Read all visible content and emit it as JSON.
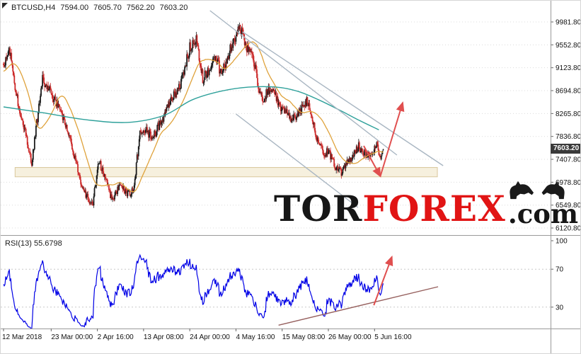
{
  "header": {
    "symbol_timeframe": "BTCUSD,H4",
    "open": "7594.00",
    "high": "7605.70",
    "low": "7562.20",
    "close": "7603.20"
  },
  "watermark": {
    "part_black_1": "TOR",
    "part_red": "FOREX",
    "part_black_2": ".com",
    "logo": "bull-and-bear"
  },
  "price_axis": {
    "current_price": "7603.20"
  },
  "rsi": {
    "label": "RSI(13) 55.6798",
    "period": 13,
    "value": 55.6798,
    "levels": [
      {
        "label": "100",
        "value": 100
      },
      {
        "label": "70",
        "value": 70
      },
      {
        "label": "30",
        "value": 30
      }
    ]
  },
  "colors": {
    "candle_up": "#1c1c1c",
    "candle_down": "#cc2b2b",
    "ma_fast": "#dfa23b",
    "ma_slow": "#2fa19b",
    "trendline": "#a9b6c2",
    "arrow": "#e04f4f",
    "rsi_line": "#0000e6",
    "rsi_trend": "#96605e",
    "zone_fill": "#efe3c2",
    "zone_border": "#d8c79c",
    "watermark_red": "#e11414",
    "watermark_black": "#161616",
    "price_tag_bg": "#3a3a3a",
    "price_tag_text": "#ffffff",
    "grid": "#dcdcdc",
    "frame": "#9a9a9a",
    "axis_text": "#111111"
  },
  "chart_data": {
    "type": "candlestick",
    "symbol": "BTCUSD",
    "timeframe": "H4",
    "title": "BTCUSD,H4",
    "candles_total": 527,
    "ohlc_last": {
      "open": 7594.0,
      "high": 7605.7,
      "low": 7562.2,
      "close": 7603.2
    },
    "y_ticks": [
      9981.8,
      9552.8,
      9123.8,
      8694.8,
      8265.8,
      7836.8,
      7407.8,
      6978.8,
      6549.8,
      6120.8
    ],
    "x_ticks": [
      {
        "label": "12 Mar 2018",
        "index": 0
      },
      {
        "label": "23 Mar 00:00",
        "index": 66
      },
      {
        "label": "2 Apr 16:00",
        "index": 130
      },
      {
        "label": "13 Apr 08:00",
        "index": 194
      },
      {
        "label": "24 Apr 00:00",
        "index": 258
      },
      {
        "label": "4 May 16:00",
        "index": 322
      },
      {
        "label": "15 May 08:00",
        "index": 386
      },
      {
        "label": "26 May 00:00",
        "index": 450
      },
      {
        "label": "5 Jun 16:00",
        "index": 514
      }
    ],
    "price_anchors": [
      [
        -144,
        8350
      ],
      [
        -100,
        8380
      ],
      [
        -60,
        8500
      ],
      [
        -24,
        8950
      ],
      [
        -6,
        9250
      ],
      [
        0,
        9150
      ],
      [
        9,
        9420
      ],
      [
        18,
        8600
      ],
      [
        30,
        7900
      ],
      [
        39,
        7350
      ],
      [
        54,
        8900
      ],
      [
        66,
        8650
      ],
      [
        72,
        8500
      ],
      [
        84,
        8150
      ],
      [
        96,
        7600
      ],
      [
        108,
        6900
      ],
      [
        123,
        6520
      ],
      [
        132,
        7380
      ],
      [
        141,
        7050
      ],
      [
        150,
        6650
      ],
      [
        162,
        6950
      ],
      [
        171,
        6750
      ],
      [
        180,
        6830
      ],
      [
        189,
        7900
      ],
      [
        198,
        7950
      ],
      [
        207,
        7800
      ],
      [
        216,
        8070
      ],
      [
        234,
        8550
      ],
      [
        246,
        8850
      ],
      [
        258,
        9500
      ],
      [
        267,
        9650
      ],
      [
        276,
        8920
      ],
      [
        285,
        9100
      ],
      [
        294,
        9350
      ],
      [
        300,
        9070
      ],
      [
        306,
        9150
      ],
      [
        315,
        9500
      ],
      [
        324,
        9800
      ],
      [
        328,
        9850
      ],
      [
        336,
        9550
      ],
      [
        348,
        9200
      ],
      [
        354,
        8700
      ],
      [
        360,
        8500
      ],
      [
        366,
        8700
      ],
      [
        372,
        8750
      ],
      [
        381,
        8450
      ],
      [
        390,
        8300
      ],
      [
        399,
        8150
      ],
      [
        408,
        8250
      ],
      [
        420,
        8480
      ],
      [
        426,
        8300
      ],
      [
        432,
        7900
      ],
      [
        438,
        7700
      ],
      [
        444,
        7500
      ],
      [
        450,
        7600
      ],
      [
        456,
        7350
      ],
      [
        462,
        7250
      ],
      [
        468,
        7130
      ],
      [
        474,
        7280
      ],
      [
        480,
        7400
      ],
      [
        486,
        7550
      ],
      [
        492,
        7650
      ],
      [
        498,
        7550
      ],
      [
        504,
        7480
      ],
      [
        510,
        7520
      ],
      [
        513,
        7570
      ],
      [
        516,
        7680
      ],
      [
        520,
        7560
      ],
      [
        523,
        7480
      ],
      [
        526,
        7603.2
      ]
    ],
    "indicators": {
      "ma_fast": {
        "type": "SMA",
        "period": 34
      },
      "ma_slow": {
        "type": "MA",
        "period": 144
      }
    },
    "ma_slow_anchors": [
      [
        0,
        8390
      ],
      [
        55,
        8280
      ],
      [
        114,
        8150
      ],
      [
        172,
        8100
      ],
      [
        222,
        8230
      ],
      [
        261,
        8520
      ],
      [
        300,
        8680
      ],
      [
        339,
        8760
      ],
      [
        378,
        8760
      ],
      [
        408,
        8680
      ],
      [
        437,
        8520
      ],
      [
        467,
        8320
      ],
      [
        491,
        8150
      ],
      [
        520,
        7960
      ]
    ],
    "support_zone": {
      "i_from": 16,
      "i_to": 601,
      "price_from": 7080,
      "price_to": 7255
    },
    "trendlines": [
      {
        "i1": 286,
        "p1": 10194,
        "i2": 545,
        "p2": 7488
      },
      {
        "i1": 331,
        "p1": 9796,
        "i2": 609,
        "p2": 7289
      },
      {
        "i1": 322,
        "p1": 8257,
        "i2": 491,
        "p2": 6506
      }
    ],
    "arrows_main": [
      {
        "i1": 499,
        "p1": 7660,
        "i2": 522,
        "p2": 7090
      },
      {
        "i1": 522,
        "p1": 7090,
        "i2": 553,
        "p2": 8470
      }
    ],
    "rsi_trendline": {
      "i1": 381,
      "v1": 11,
      "i2": 602,
      "v2": 51.5
    },
    "arrow_rsi": {
      "i1": 513,
      "v1": 32,
      "i2": 538,
      "v2": 83
    }
  }
}
